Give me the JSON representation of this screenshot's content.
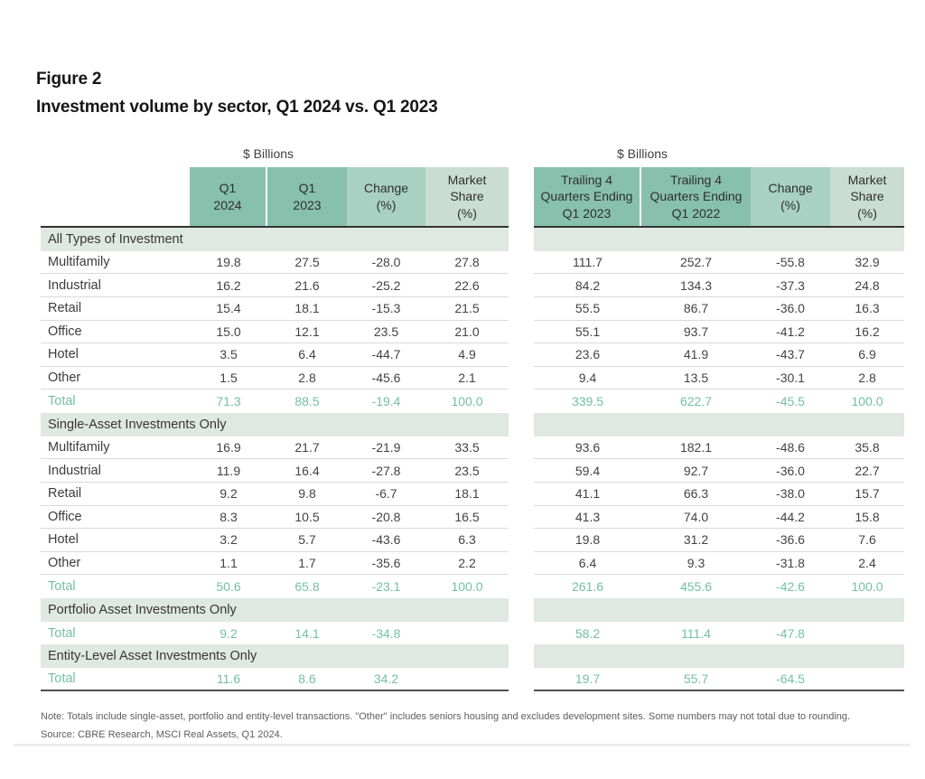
{
  "header": {
    "figure_label": "Figure 2",
    "title": "Investment volume by sector, Q1 2024 vs. Q1 2023"
  },
  "left_units": "$ Billions",
  "right_units": "$ Billions",
  "left_columns": [
    "Q1\n2024",
    "Q1\n2023",
    "Change\n(%)",
    "Market\nShare\n(%)"
  ],
  "right_columns": [
    "Trailing 4\nQuarters Ending\nQ1 2023",
    "Trailing 4\nQuarters Ending\nQ1 2022",
    "Change\n(%)",
    "Market\nShare\n(%)"
  ],
  "sections": [
    {
      "title": "All Types of Investment",
      "rows": [
        {
          "label": "Multifamily",
          "left": [
            "19.8",
            "27.5",
            "-28.0",
            "27.8"
          ],
          "right": [
            "111.7",
            "252.7",
            "-55.8",
            "32.9"
          ]
        },
        {
          "label": "Industrial",
          "left": [
            "16.2",
            "21.6",
            "-25.2",
            "22.6"
          ],
          "right": [
            "84.2",
            "134.3",
            "-37.3",
            "24.8"
          ]
        },
        {
          "label": "Retail",
          "left": [
            "15.4",
            "18.1",
            "-15.3",
            "21.5"
          ],
          "right": [
            "55.5",
            "86.7",
            "-36.0",
            "16.3"
          ]
        },
        {
          "label": "Office",
          "left": [
            "15.0",
            "12.1",
            "23.5",
            "21.0"
          ],
          "right": [
            "55.1",
            "93.7",
            "-41.2",
            "16.2"
          ]
        },
        {
          "label": "Hotel",
          "left": [
            "3.5",
            "6.4",
            "-44.7",
            "4.9"
          ],
          "right": [
            "23.6",
            "41.9",
            "-43.7",
            "6.9"
          ]
        },
        {
          "label": "Other",
          "left": [
            "1.5",
            "2.8",
            "-45.6",
            "2.1"
          ],
          "right": [
            "9.4",
            "13.5",
            "-30.1",
            "2.8"
          ]
        },
        {
          "label": "Total",
          "left": [
            "71.3",
            "88.5",
            "-19.4",
            "100.0"
          ],
          "right": [
            "339.5",
            "622.7",
            "-45.5",
            "100.0"
          ]
        }
      ]
    },
    {
      "title": "Single-Asset Investments Only",
      "rows": [
        {
          "label": "Multifamily",
          "left": [
            "16.9",
            "21.7",
            "-21.9",
            "33.5"
          ],
          "right": [
            "93.6",
            "182.1",
            "-48.6",
            "35.8"
          ]
        },
        {
          "label": "Industrial",
          "left": [
            "11.9",
            "16.4",
            "-27.8",
            "23.5"
          ],
          "right": [
            "59.4",
            "92.7",
            "-36.0",
            "22.7"
          ]
        },
        {
          "label": "Retail",
          "left": [
            "9.2",
            "9.8",
            "-6.7",
            "18.1"
          ],
          "right": [
            "41.1",
            "66.3",
            "-38.0",
            "15.7"
          ]
        },
        {
          "label": "Office",
          "left": [
            "8.3",
            "10.5",
            "-20.8",
            "16.5"
          ],
          "right": [
            "41.3",
            "74.0",
            "-44.2",
            "15.8"
          ]
        },
        {
          "label": "Hotel",
          "left": [
            "3.2",
            "5.7",
            "-43.6",
            "6.3"
          ],
          "right": [
            "19.8",
            "31.2",
            "-36.6",
            "7.6"
          ]
        },
        {
          "label": "Other",
          "left": [
            "1.1",
            "1.7",
            "-35.6",
            "2.2"
          ],
          "right": [
            "6.4",
            "9.3",
            "-31.8",
            "2.4"
          ]
        },
        {
          "label": "Total",
          "left": [
            "50.6",
            "65.8",
            "-23.1",
            "100.0"
          ],
          "right": [
            "261.6",
            "455.6",
            "-42.6",
            "100.0"
          ]
        }
      ]
    },
    {
      "title": "Portfolio Asset Investments Only",
      "rows": [
        {
          "label": "Total",
          "left": [
            "9.2",
            "14.1",
            "-34.8",
            ""
          ],
          "right": [
            "58.2",
            "111.4",
            "-47.8",
            ""
          ]
        }
      ]
    },
    {
      "title": "Entity-Level Asset Investments Only",
      "rows": [
        {
          "label": "Total",
          "left": [
            "11.6",
            "8.6",
            "34.2",
            ""
          ],
          "right": [
            "19.7",
            "55.7",
            "-64.5",
            ""
          ]
        }
      ]
    }
  ],
  "footer": {
    "note": "Note: Totals include single-asset, portfolio and entity-level transactions. \"Other\" includes seniors housing and excludes development sites. Some numbers may not total due to rounding.",
    "source": "Source: CBRE Research, MSCI Real Assets, Q1 2024."
  },
  "colors": {
    "header_primary": "#88c0ae",
    "header_change": "#a8d1c3",
    "header_share": "#c9ddd3",
    "section_band": "#dfe8e2",
    "total_text": "#74c0a5",
    "rule_dark": "#333333",
    "rule_bottom": "#4f4f4f",
    "row_line": "#d6dcd7"
  }
}
